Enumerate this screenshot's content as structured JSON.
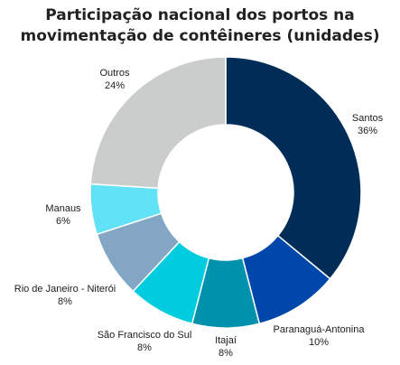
{
  "chart_data": {
    "type": "pie",
    "title": "Participação nacional dos portos na movimentação de contêineres (unidades)",
    "title_lines": [
      "Participação nacional dos portos na",
      "movimentação de contêineres (unidades)"
    ],
    "donut": true,
    "unit": "%",
    "slices": [
      {
        "label": "Santos",
        "value": 36,
        "display": "36%",
        "color": "#002d58"
      },
      {
        "label": "Paranaguá-Antonina",
        "value": 10,
        "display": "10%",
        "color": "#0047ab"
      },
      {
        "label": "Itajaí",
        "value": 8,
        "display": "8%",
        "color": "#0092ad"
      },
      {
        "label": "São Francisco do Sul",
        "value": 8,
        "display": "8%",
        "color": "#00cce0"
      },
      {
        "label": "Rio de Janeiro - Niterói",
        "value": 8,
        "display": "8%",
        "color": "#82a6c4"
      },
      {
        "label": "Manaus",
        "value": 6,
        "display": "6%",
        "color": "#62e2f6"
      },
      {
        "label": "Outros",
        "value": 24,
        "display": "24%",
        "color": "#cbcccc"
      }
    ]
  }
}
